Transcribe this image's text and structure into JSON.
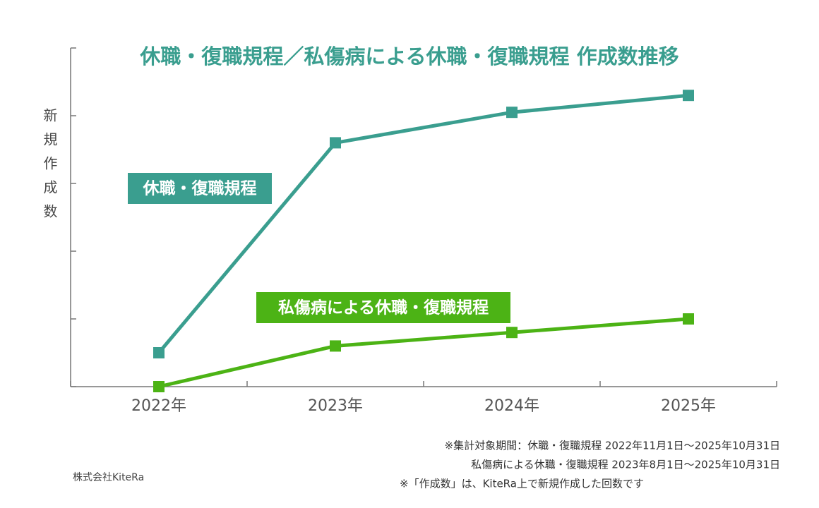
{
  "chart_data": {
    "type": "line",
    "title": "休職・復職規程／私傷病による休職・復職規程 作成数推移",
    "y_label": "新規作成数",
    "categories": [
      "2022年",
      "2023年",
      "2024年",
      "2025年"
    ],
    "series": [
      {
        "name": "休職・復職規程",
        "color": "#3a9e8f",
        "values": [
          0.5,
          3.6,
          4.05,
          4.3
        ]
      },
      {
        "name": "私傷病による休職・復職規程",
        "color": "#4cb315",
        "values": [
          0,
          0.6,
          0.8,
          1.0
        ]
      }
    ],
    "ylim": [
      0,
      5
    ],
    "yticks": [
      0,
      1,
      2,
      3,
      4,
      5
    ],
    "notes": [
      "※集計対象期間：休職・復職規程 2022年11月1日〜2025年10月31日",
      "私傷病による休職・復職規程 2023年8月1日〜2025年10月31日",
      "※「作成数」は、KiteRa上で新規作成した回数です"
    ],
    "source": "株式会社KiteRa"
  }
}
